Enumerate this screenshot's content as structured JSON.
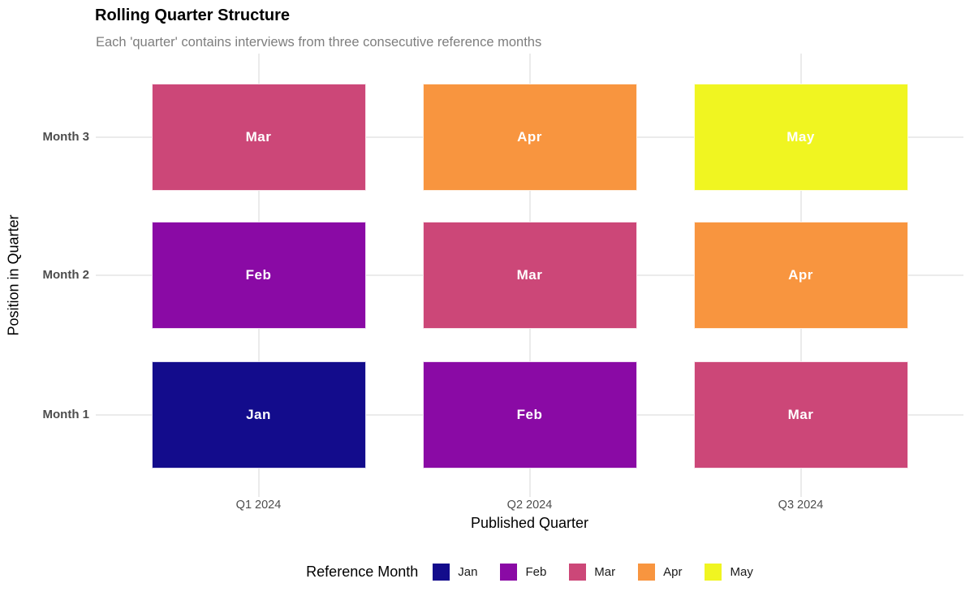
{
  "title": "Rolling Quarter Structure",
  "subtitle": "Each 'quarter' contains interviews from three consecutive reference months",
  "chart_data": {
    "type": "heatmap",
    "title": "Rolling Quarter Structure",
    "subtitle": "Each 'quarter' contains interviews from three consecutive reference months",
    "xlabel": "Published Quarter",
    "ylabel": "Position in Quarter",
    "x_categories": [
      "Q1 2024",
      "Q2 2024",
      "Q3 2024"
    ],
    "y_categories": [
      "Month 1",
      "Month 2",
      "Month 3"
    ],
    "grid": true,
    "legend_position": "bottom",
    "tiles": [
      {
        "x": "Q1 2024",
        "y": "Month 1",
        "month": "Jan"
      },
      {
        "x": "Q1 2024",
        "y": "Month 2",
        "month": "Feb"
      },
      {
        "x": "Q1 2024",
        "y": "Month 3",
        "month": "Mar"
      },
      {
        "x": "Q2 2024",
        "y": "Month 1",
        "month": "Feb"
      },
      {
        "x": "Q2 2024",
        "y": "Month 2",
        "month": "Mar"
      },
      {
        "x": "Q2 2024",
        "y": "Month 3",
        "month": "Apr"
      },
      {
        "x": "Q3 2024",
        "y": "Month 1",
        "month": "Mar"
      },
      {
        "x": "Q3 2024",
        "y": "Month 2",
        "month": "Apr"
      },
      {
        "x": "Q3 2024",
        "y": "Month 3",
        "month": "May"
      }
    ]
  },
  "legend": {
    "title": "Reference Month",
    "entries": [
      {
        "label": "Jan",
        "color": "#130c8c"
      },
      {
        "label": "Feb",
        "color": "#8a0aa5"
      },
      {
        "label": "Mar",
        "color": "#cc4778"
      },
      {
        "label": "Apr",
        "color": "#f8953f"
      },
      {
        "label": "May",
        "color": "#f0f521"
      }
    ]
  },
  "colors": {
    "grid": "#ebebeb",
    "tile_text": "#ffffff",
    "axis_text": "#4d4d4d",
    "axis_title": "#000000",
    "subtitle": "#7e7e7e",
    "background": "#ffffff"
  }
}
